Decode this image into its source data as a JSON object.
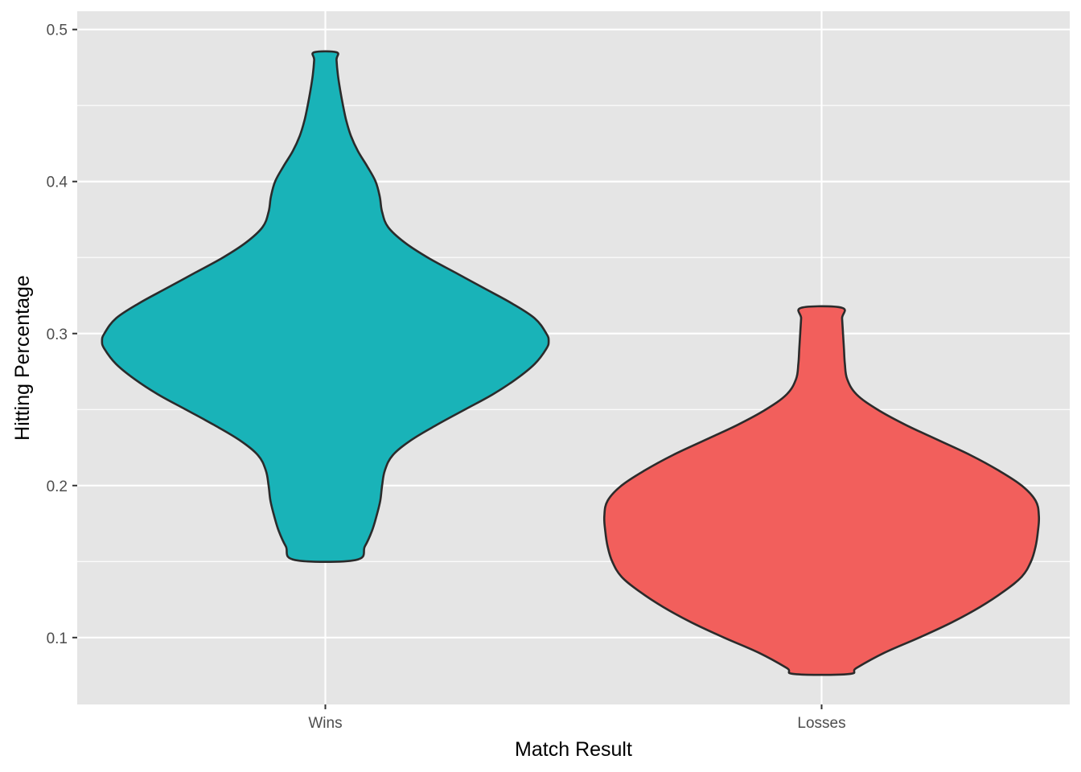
{
  "chart_data": {
    "type": "violin",
    "xlabel": "Match Result",
    "ylabel": "Hitting Percentage",
    "categories": [
      "Wins",
      "Losses"
    ],
    "ylim": [
      0.056,
      0.512
    ],
    "yticks": [
      0.1,
      0.2,
      0.3,
      0.4,
      0.5
    ],
    "yticks_labels": [
      "0.1",
      "0.2",
      "0.3",
      "0.4",
      "0.5"
    ],
    "grid": true,
    "legend": "none",
    "background_color": "#E5E5E5",
    "grid_color": "#FFFFFF",
    "outline_color": "#2B2B2B",
    "series": [
      {
        "category": "Wins",
        "fill": "#19B3B8",
        "min": 0.151,
        "max": 0.485,
        "profile": [
          [
            0.151,
            0.065
          ],
          [
            0.16,
            0.085
          ],
          [
            0.17,
            0.1
          ],
          [
            0.18,
            0.11
          ],
          [
            0.19,
            0.118
          ],
          [
            0.2,
            0.122
          ],
          [
            0.21,
            0.128
          ],
          [
            0.22,
            0.145
          ],
          [
            0.23,
            0.185
          ],
          [
            0.24,
            0.24
          ],
          [
            0.25,
            0.3
          ],
          [
            0.26,
            0.36
          ],
          [
            0.27,
            0.41
          ],
          [
            0.28,
            0.45
          ],
          [
            0.29,
            0.475
          ],
          [
            0.295,
            0.48
          ],
          [
            0.3,
            0.475
          ],
          [
            0.31,
            0.45
          ],
          [
            0.32,
            0.4
          ],
          [
            0.33,
            0.34
          ],
          [
            0.34,
            0.28
          ],
          [
            0.35,
            0.22
          ],
          [
            0.36,
            0.17
          ],
          [
            0.37,
            0.135
          ],
          [
            0.38,
            0.122
          ],
          [
            0.39,
            0.117
          ],
          [
            0.4,
            0.108
          ],
          [
            0.41,
            0.09
          ],
          [
            0.42,
            0.07
          ],
          [
            0.43,
            0.055
          ],
          [
            0.44,
            0.045
          ],
          [
            0.45,
            0.038
          ],
          [
            0.46,
            0.032
          ],
          [
            0.47,
            0.027
          ],
          [
            0.48,
            0.024
          ],
          [
            0.485,
            0.024
          ]
        ]
      },
      {
        "category": "Losses",
        "fill": "#F25F5C",
        "min": 0.076,
        "max": 0.317,
        "profile": [
          [
            0.076,
            0.058
          ],
          [
            0.08,
            0.075
          ],
          [
            0.09,
            0.135
          ],
          [
            0.1,
            0.21
          ],
          [
            0.11,
            0.28
          ],
          [
            0.12,
            0.34
          ],
          [
            0.13,
            0.39
          ],
          [
            0.14,
            0.43
          ],
          [
            0.15,
            0.45
          ],
          [
            0.16,
            0.46
          ],
          [
            0.17,
            0.465
          ],
          [
            0.18,
            0.467
          ],
          [
            0.19,
            0.46
          ],
          [
            0.2,
            0.43
          ],
          [
            0.21,
            0.38
          ],
          [
            0.22,
            0.32
          ],
          [
            0.23,
            0.25
          ],
          [
            0.24,
            0.18
          ],
          [
            0.25,
            0.12
          ],
          [
            0.26,
            0.075
          ],
          [
            0.27,
            0.055
          ],
          [
            0.28,
            0.05
          ],
          [
            0.29,
            0.048
          ],
          [
            0.3,
            0.046
          ],
          [
            0.31,
            0.044
          ],
          [
            0.317,
            0.043
          ]
        ]
      }
    ]
  }
}
